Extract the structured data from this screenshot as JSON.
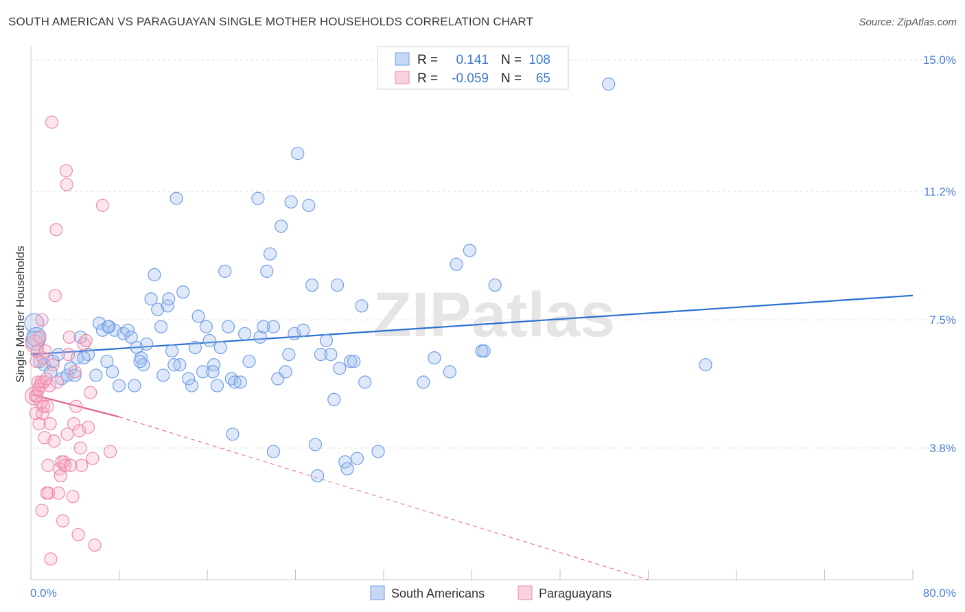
{
  "title": "SOUTH AMERICAN VS PARAGUAYAN SINGLE MOTHER HOUSEHOLDS CORRELATION CHART",
  "source": "Source: ZipAtlas.com",
  "watermark": "ZIPatlas",
  "colors": {
    "blue": "#6f9ee6",
    "blue_fill": "rgba(160,190,235,0.35)",
    "blue_line": "#2a6fd0",
    "pink": "#ec8aaa",
    "pink_fill": "rgba(244,170,195,0.30)",
    "pink_line": "#e0608a",
    "tick": "#4a7fd4",
    "grid": "#dedede"
  },
  "legend": {
    "rows": [
      {
        "r_label": "R =",
        "r_value": "0.141",
        "n_label": "N =",
        "n_value": "108",
        "series": "blue"
      },
      {
        "r_label": "R =",
        "r_value": "-0.059",
        "n_label": "N =",
        "n_value": "65",
        "series": "pink"
      }
    ]
  },
  "chart_data": {
    "type": "scatter",
    "xlabel": "",
    "ylabel": "Single Mother Households",
    "xlim": [
      0,
      80
    ],
    "ylim": [
      0,
      15.3
    ],
    "x_tick_labels": [
      "0.0%",
      "80.0%"
    ],
    "y_ticks": [
      3.8,
      7.5,
      11.2,
      15.0
    ],
    "y_tick_labels": [
      "3.8%",
      "7.5%",
      "11.2%",
      "15.0%"
    ],
    "grid": true,
    "legend_position": "bottom-center",
    "series": [
      {
        "name": "South Americans",
        "color": "blue",
        "trendline": {
          "x": [
            0,
            80
          ],
          "y": [
            6.5,
            8.2
          ]
        },
        "points": [
          [
            0.3,
            7.4
          ],
          [
            0.4,
            6.9
          ],
          [
            0.5,
            7.0
          ],
          [
            0.8,
            6.3
          ],
          [
            1.2,
            6.2
          ],
          [
            1.8,
            6.0
          ],
          [
            2.0,
            6.3
          ],
          [
            2.5,
            6.5
          ],
          [
            2.8,
            5.8
          ],
          [
            3.3,
            5.9
          ],
          [
            3.6,
            6.1
          ],
          [
            4.0,
            5.9
          ],
          [
            4.2,
            6.4
          ],
          [
            4.5,
            7.0
          ],
          [
            5.2,
            6.5
          ],
          [
            5.9,
            5.9
          ],
          [
            6.2,
            7.4
          ],
          [
            6.5,
            7.2
          ],
          [
            6.9,
            6.3
          ],
          [
            7.1,
            7.3
          ],
          [
            7.4,
            6.0
          ],
          [
            7.6,
            7.2
          ],
          [
            8.0,
            5.6
          ],
          [
            8.4,
            7.1
          ],
          [
            8.8,
            7.2
          ],
          [
            9.1,
            7.0
          ],
          [
            9.4,
            5.6
          ],
          [
            9.6,
            6.7
          ],
          [
            10.0,
            6.4
          ],
          [
            10.2,
            6.2
          ],
          [
            10.5,
            6.8
          ],
          [
            10.9,
            8.1
          ],
          [
            11.2,
            8.8
          ],
          [
            11.5,
            7.8
          ],
          [
            11.8,
            7.3
          ],
          [
            12.0,
            5.9
          ],
          [
            12.4,
            7.9
          ],
          [
            12.5,
            8.1
          ],
          [
            12.8,
            6.6
          ],
          [
            13.2,
            11.0
          ],
          [
            13.5,
            6.2
          ],
          [
            13.8,
            8.3
          ],
          [
            14.3,
            5.8
          ],
          [
            14.6,
            5.6
          ],
          [
            14.9,
            6.7
          ],
          [
            15.2,
            7.6
          ],
          [
            15.6,
            6.0
          ],
          [
            15.9,
            7.3
          ],
          [
            16.2,
            6.9
          ],
          [
            16.6,
            6.2
          ],
          [
            16.9,
            5.6
          ],
          [
            17.2,
            6.7
          ],
          [
            17.6,
            8.9
          ],
          [
            17.9,
            7.3
          ],
          [
            18.2,
            5.8
          ],
          [
            18.5,
            5.7
          ],
          [
            19.0,
            5.7
          ],
          [
            19.4,
            7.1
          ],
          [
            19.8,
            6.3
          ],
          [
            20.6,
            11.0
          ],
          [
            20.8,
            7.0
          ],
          [
            21.1,
            7.3
          ],
          [
            21.4,
            8.9
          ],
          [
            21.7,
            9.4
          ],
          [
            22.0,
            7.3
          ],
          [
            22.4,
            5.8
          ],
          [
            22.7,
            10.2
          ],
          [
            23.1,
            6.0
          ],
          [
            23.4,
            6.5
          ],
          [
            23.6,
            10.9
          ],
          [
            23.9,
            7.1
          ],
          [
            24.2,
            12.3
          ],
          [
            24.7,
            7.2
          ],
          [
            25.2,
            10.8
          ],
          [
            25.5,
            8.5
          ],
          [
            25.8,
            3.9
          ],
          [
            26.0,
            3.0
          ],
          [
            26.3,
            6.5
          ],
          [
            26.8,
            6.9
          ],
          [
            27.2,
            6.5
          ],
          [
            27.5,
            5.2
          ],
          [
            27.8,
            8.5
          ],
          [
            28.0,
            6.1
          ],
          [
            28.5,
            3.4
          ],
          [
            28.7,
            3.2
          ],
          [
            29.0,
            6.3
          ],
          [
            29.3,
            6.3
          ],
          [
            29.6,
            3.5
          ],
          [
            30.0,
            7.9
          ],
          [
            30.3,
            5.7
          ],
          [
            31.5,
            3.7
          ],
          [
            35.6,
            5.7
          ],
          [
            36.6,
            6.4
          ],
          [
            38.0,
            6.0
          ],
          [
            38.6,
            9.1
          ],
          [
            39.8,
            9.5
          ],
          [
            40.9,
            6.6
          ],
          [
            41.1,
            6.6
          ],
          [
            42.1,
            8.5
          ],
          [
            52.4,
            14.3
          ],
          [
            61.2,
            6.2
          ],
          [
            7.0,
            7.3
          ],
          [
            4.8,
            6.4
          ],
          [
            9.9,
            6.3
          ],
          [
            18.3,
            4.2
          ],
          [
            22.0,
            3.7
          ],
          [
            13.0,
            6.2
          ],
          [
            16.5,
            6.0
          ]
        ]
      },
      {
        "name": "Paraguayans",
        "color": "pink",
        "trendline": {
          "x": [
            0,
            8
          ],
          "y": [
            5.35,
            4.7
          ],
          "dashed_extension": {
            "x": [
              8,
              56
            ],
            "y": [
              4.7,
              0.0
            ]
          }
        },
        "points": [
          [
            0.3,
            5.3
          ],
          [
            0.35,
            6.8
          ],
          [
            0.4,
            5.3
          ],
          [
            0.45,
            4.8
          ],
          [
            0.5,
            6.3
          ],
          [
            0.55,
            5.3
          ],
          [
            0.6,
            6.6
          ],
          [
            0.65,
            5.7
          ],
          [
            0.7,
            5.5
          ],
          [
            0.75,
            4.5
          ],
          [
            0.8,
            7.0
          ],
          [
            0.85,
            5.6
          ],
          [
            0.9,
            5.1
          ],
          [
            0.95,
            5.7
          ],
          [
            1.0,
            7.5
          ],
          [
            1.05,
            4.8
          ],
          [
            1.1,
            6.4
          ],
          [
            1.15,
            5.0
          ],
          [
            1.2,
            5.7
          ],
          [
            1.25,
            4.1
          ],
          [
            1.3,
            6.6
          ],
          [
            1.4,
            5.8
          ],
          [
            1.45,
            2.5
          ],
          [
            1.5,
            5.0
          ],
          [
            1.55,
            3.3
          ],
          [
            1.6,
            2.5
          ],
          [
            1.7,
            5.6
          ],
          [
            1.75,
            4.5
          ],
          [
            1.8,
            0.6
          ],
          [
            1.9,
            13.2
          ],
          [
            2.0,
            6.2
          ],
          [
            2.1,
            4.0
          ],
          [
            2.2,
            8.2
          ],
          [
            2.3,
            10.1
          ],
          [
            2.4,
            5.7
          ],
          [
            2.5,
            2.5
          ],
          [
            2.6,
            3.2
          ],
          [
            2.7,
            3.0
          ],
          [
            2.8,
            3.4
          ],
          [
            2.9,
            1.7
          ],
          [
            3.0,
            3.4
          ],
          [
            3.1,
            3.3
          ],
          [
            3.2,
            11.8
          ],
          [
            3.25,
            11.4
          ],
          [
            3.3,
            4.2
          ],
          [
            3.4,
            6.5
          ],
          [
            3.5,
            7.0
          ],
          [
            3.6,
            3.3
          ],
          [
            3.8,
            2.4
          ],
          [
            3.9,
            4.5
          ],
          [
            4.0,
            6.0
          ],
          [
            4.1,
            5.0
          ],
          [
            4.3,
            1.3
          ],
          [
            4.4,
            4.3
          ],
          [
            4.5,
            3.8
          ],
          [
            4.6,
            3.3
          ],
          [
            4.8,
            6.8
          ],
          [
            5.0,
            6.9
          ],
          [
            5.2,
            4.4
          ],
          [
            5.4,
            5.4
          ],
          [
            5.6,
            3.5
          ],
          [
            5.8,
            1.0
          ],
          [
            6.5,
            10.8
          ],
          [
            7.2,
            3.7
          ],
          [
            1.0,
            2.0
          ]
        ]
      }
    ]
  },
  "bottom_legend": [
    "South Americans",
    "Paraguayans"
  ]
}
